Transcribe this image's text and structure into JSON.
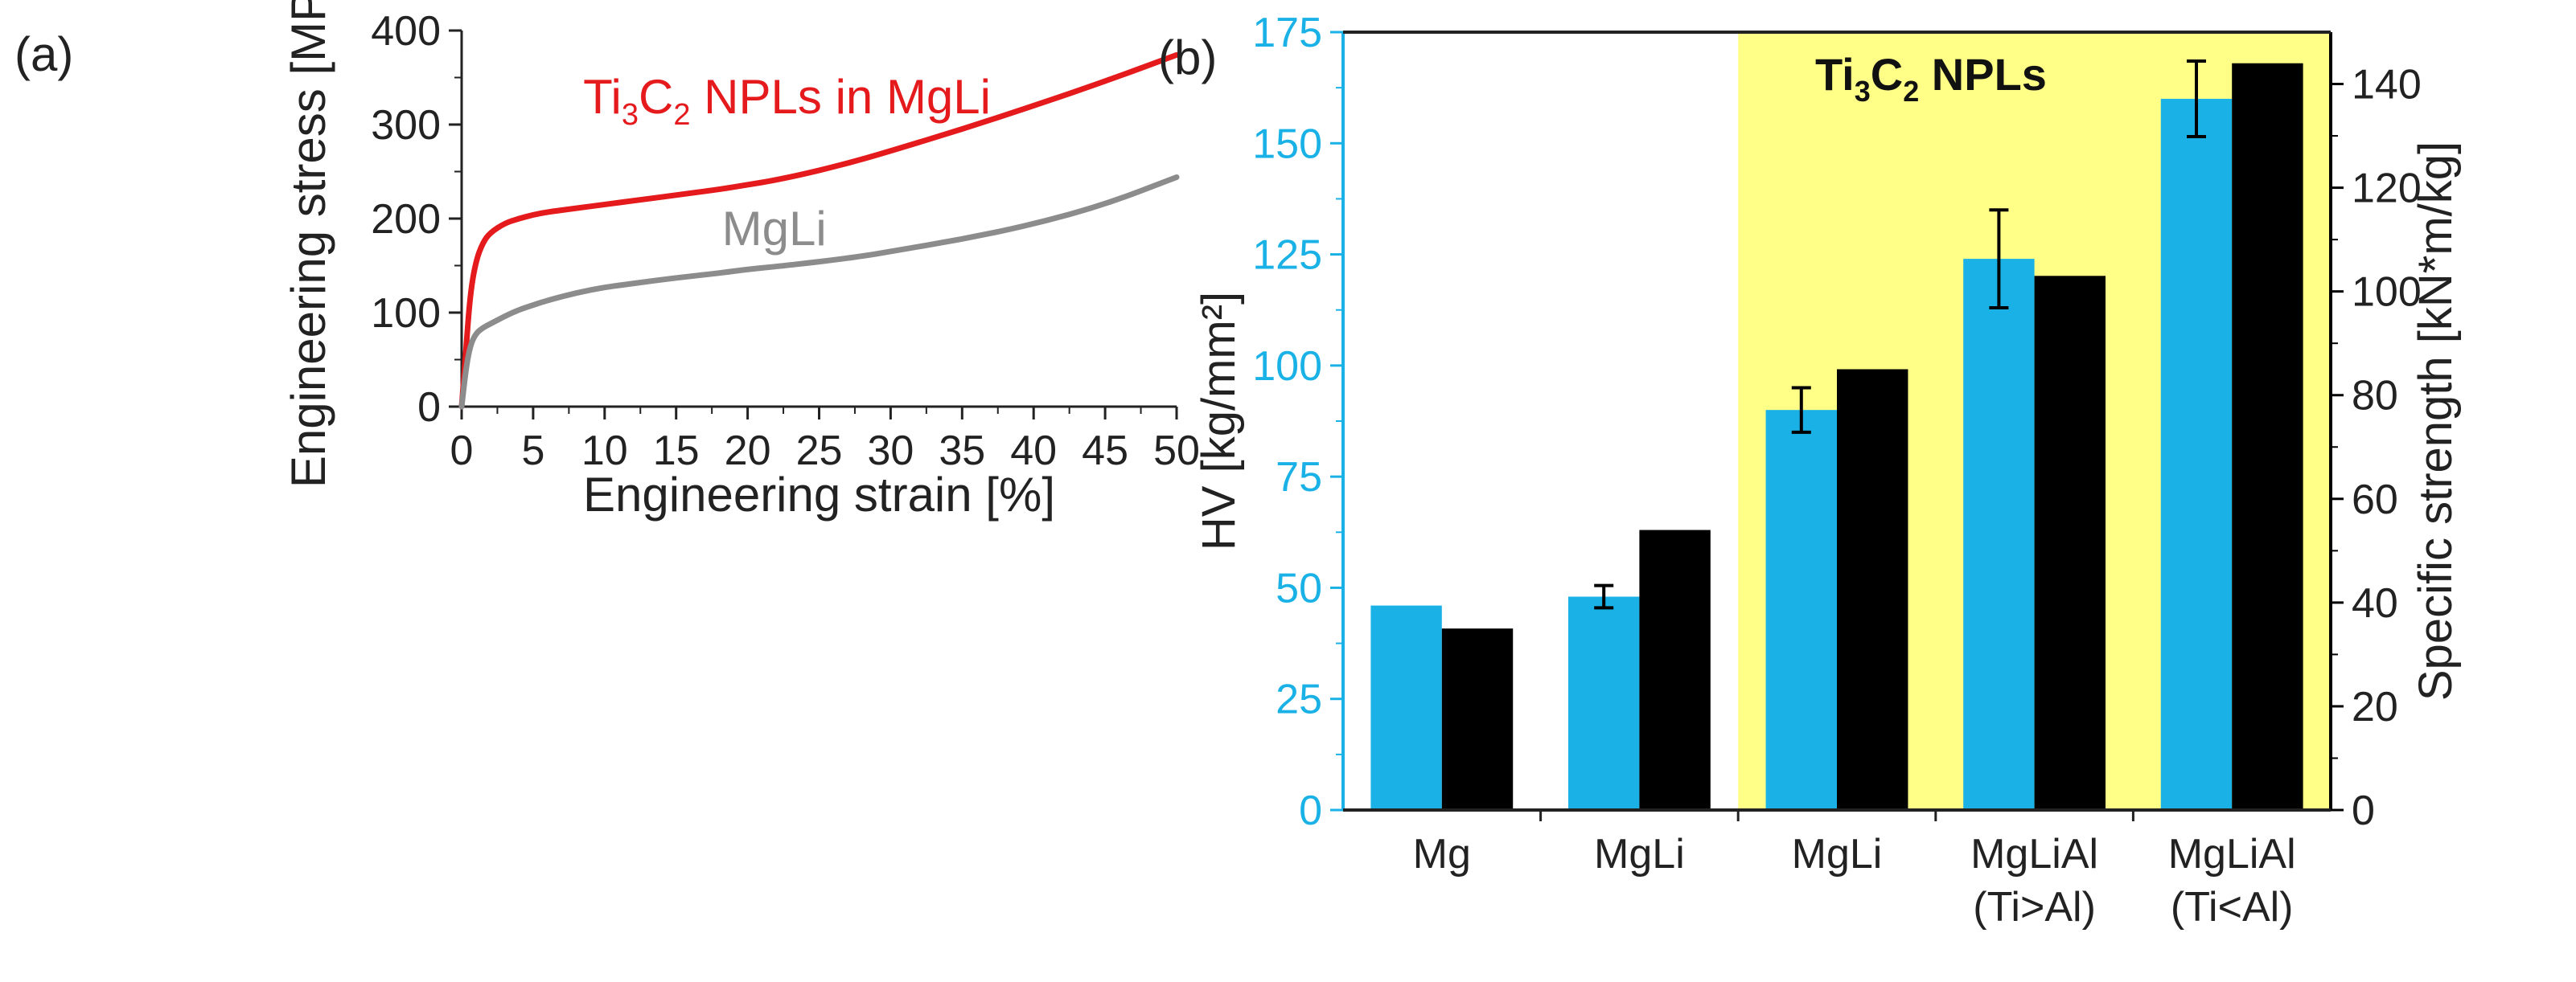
{
  "chart_data": [
    {
      "panel_label": "(a)",
      "type": "line",
      "title": "",
      "xlabel": "Engineering strain [%]",
      "ylabel": "Engineering stress [MPa]",
      "xlim": [
        0,
        50
      ],
      "ylim": [
        0,
        400
      ],
      "xticks": [
        0,
        5,
        10,
        15,
        20,
        25,
        30,
        35,
        40,
        45,
        50
      ],
      "yticks": [
        0,
        100,
        200,
        300,
        400
      ],
      "grid": false,
      "series": [
        {
          "name": "Ti3C2 NPLs in MgLi",
          "label_main": "Ti",
          "label_sub1": "3",
          "label_mid": "C",
          "label_sub2": "2",
          "label_tail": " NPLs in MgLi",
          "color": "#e41a1c",
          "x": [
            0,
            0.3,
            0.6,
            1.0,
            1.5,
            2.0,
            3.0,
            4.0,
            5.0,
            6.0,
            8.0,
            10,
            12,
            15,
            18,
            20,
            22,
            25,
            28,
            30,
            35,
            40,
            45,
            50
          ],
          "y": [
            0,
            60,
            120,
            155,
            175,
            185,
            195,
            200,
            204,
            207,
            211,
            215,
            219,
            225,
            231,
            236,
            241,
            251,
            263,
            272,
            295,
            320,
            346,
            374
          ]
        },
        {
          "name": "MgLi",
          "color": "#8c8c8c",
          "x": [
            0,
            0.3,
            0.6,
            1.0,
            1.5,
            2.0,
            3.0,
            4.0,
            5.0,
            6.0,
            8.0,
            10,
            12,
            15,
            18,
            20,
            22,
            25,
            28,
            30,
            35,
            40,
            45,
            50
          ],
          "y": [
            0,
            40,
            65,
            78,
            84,
            88,
            96,
            103,
            108,
            113,
            121,
            127,
            131,
            137,
            142,
            146,
            149,
            154,
            160,
            165,
            178,
            194,
            215,
            244
          ]
        }
      ]
    },
    {
      "panel_label": "(b)",
      "type": "bar",
      "title": "",
      "xlabel": "",
      "ylabel_left": "HV [kg/mm²]",
      "ylabel_right": "Specific strength [kN*m/kg]",
      "ylim_left": [
        0,
        175
      ],
      "ylim_right": [
        0,
        150
      ],
      "yticks_left": [
        0,
        25,
        50,
        75,
        100,
        125,
        150,
        175
      ],
      "yticks_right": [
        0,
        20,
        40,
        60,
        80,
        100,
        120,
        140
      ],
      "highlight_label": "Ti3C2 NPLs",
      "highlight_parts": {
        "a": "Ti",
        "b": "3",
        "c": "C",
        "d": "2",
        "e": " NPLs"
      },
      "highlight_color": "#ffff88",
      "categories": [
        {
          "line1": "Mg",
          "line2": ""
        },
        {
          "line1": "MgLi",
          "line2": ""
        },
        {
          "line1": "MgLi",
          "line2": ""
        },
        {
          "line1": "MgLiAl",
          "line2": "(Ti>Al)"
        },
        {
          "line1": "MgLiAl",
          "line2": "(Ti<Al)"
        }
      ],
      "highlight_from_index": 2,
      "series": [
        {
          "name": "HV",
          "axis": "left",
          "color": "#1ab2e6",
          "values": [
            46,
            48,
            90,
            124,
            160
          ],
          "errors": [
            null,
            2.5,
            5,
            11,
            8.5
          ]
        },
        {
          "name": "Specific strength",
          "axis": "right",
          "color": "#000000",
          "values": [
            35,
            54,
            85,
            103,
            144
          ]
        }
      ],
      "axis_color_left": "#1ab2e6",
      "axis_color_right": "#000000"
    }
  ]
}
